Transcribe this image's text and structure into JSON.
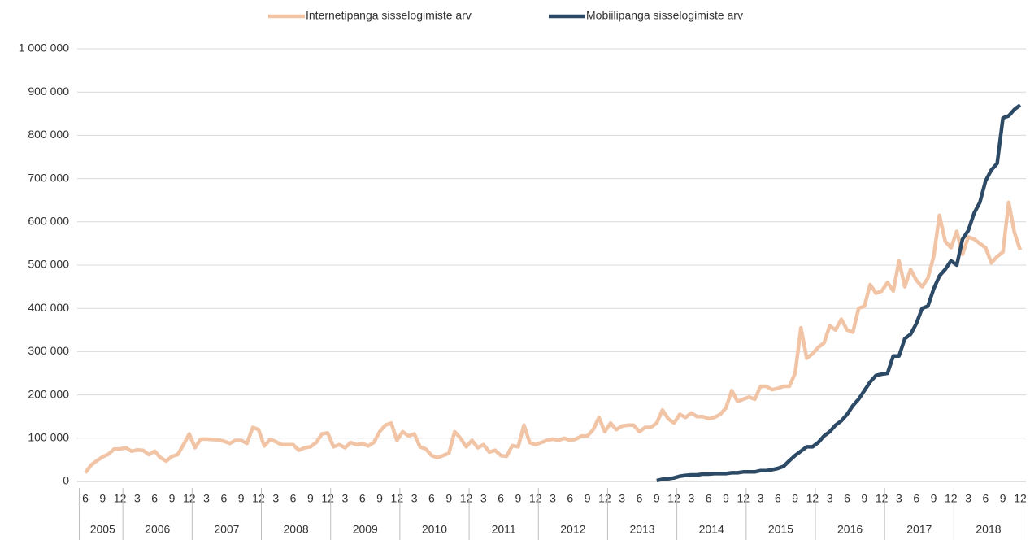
{
  "chart_data": {
    "type": "line",
    "categories": [
      "6",
      null,
      null,
      "9",
      null,
      null,
      "12",
      null,
      null,
      "3",
      null,
      null,
      "6",
      null,
      null,
      "9",
      null,
      null,
      "12",
      null,
      null,
      "3",
      null,
      null,
      "6",
      null,
      null,
      "9",
      null,
      null,
      "12",
      null,
      null,
      "3",
      null,
      null,
      "6",
      null,
      null,
      "9",
      null,
      null,
      "12",
      null,
      null,
      "3",
      null,
      null,
      "6",
      null,
      null,
      "9",
      null,
      null,
      "12",
      null,
      null,
      "3",
      null,
      null,
      "6",
      null,
      null,
      "9",
      null,
      null,
      "12",
      null,
      null,
      "3",
      null,
      null,
      "6",
      null,
      null,
      "9",
      null,
      null,
      "12",
      null,
      null,
      "3",
      null,
      null,
      "6",
      null,
      null,
      "9",
      null,
      null,
      "12",
      null,
      null,
      "3",
      null,
      null,
      "6",
      null,
      null,
      "9",
      null,
      null,
      "12",
      null,
      null,
      "3",
      null,
      null,
      "6",
      null,
      null,
      "9",
      null,
      null,
      "12",
      null,
      null,
      "3",
      null,
      null,
      "6",
      null,
      null,
      "9",
      null,
      null,
      "12",
      null,
      null,
      "3",
      null,
      null,
      "6",
      null,
      null,
      "9",
      null,
      null,
      "12",
      null,
      null,
      "3",
      null,
      null,
      "6",
      null,
      null,
      "9",
      null,
      null,
      "12",
      null,
      null,
      "3",
      null,
      null,
      "6",
      null,
      null,
      "9",
      null,
      null,
      "12"
    ],
    "x_groups": [
      {
        "label": "2005",
        "size": 7
      },
      {
        "label": "2006",
        "size": 12
      },
      {
        "label": "2007",
        "size": 12
      },
      {
        "label": "2008",
        "size": 12
      },
      {
        "label": "2009",
        "size": 12
      },
      {
        "label": "2010",
        "size": 12
      },
      {
        "label": "2011",
        "size": 12
      },
      {
        "label": "2012",
        "size": 12
      },
      {
        "label": "2013",
        "size": 12
      },
      {
        "label": "2014",
        "size": 12
      },
      {
        "label": "2015",
        "size": 12
      },
      {
        "label": "2016",
        "size": 12
      },
      {
        "label": "2017",
        "size": 12
      },
      {
        "label": "2018",
        "size": 12
      }
    ],
    "series": [
      {
        "name": "Internetipanga sisselogimiste arv",
        "color": "#f2c4a6",
        "values": [
          20000,
          38000,
          48000,
          57000,
          63000,
          75000,
          75000,
          78000,
          70000,
          73000,
          72000,
          62000,
          70000,
          55000,
          47000,
          58000,
          62000,
          85000,
          110000,
          78000,
          98000,
          98000,
          97000,
          96000,
          93000,
          88000,
          95000,
          95000,
          88000,
          125000,
          120000,
          82000,
          97000,
          92000,
          85000,
          85000,
          85000,
          72000,
          78000,
          80000,
          90000,
          110000,
          112000,
          80000,
          85000,
          78000,
          90000,
          85000,
          88000,
          82000,
          90000,
          115000,
          130000,
          135000,
          95000,
          115000,
          105000,
          110000,
          80000,
          75000,
          60000,
          55000,
          60000,
          65000,
          115000,
          100000,
          80000,
          95000,
          78000,
          85000,
          68000,
          72000,
          60000,
          58000,
          83000,
          80000,
          130000,
          90000,
          85000,
          90000,
          95000,
          98000,
          95000,
          100000,
          95000,
          98000,
          105000,
          105000,
          120000,
          148000,
          115000,
          135000,
          120000,
          128000,
          130000,
          130000,
          115000,
          125000,
          125000,
          135000,
          165000,
          145000,
          135000,
          155000,
          148000,
          158000,
          150000,
          150000,
          145000,
          148000,
          155000,
          170000,
          210000,
          185000,
          190000,
          195000,
          190000,
          220000,
          220000,
          212000,
          215000,
          220000,
          220000,
          250000,
          355000,
          285000,
          295000,
          310000,
          320000,
          360000,
          350000,
          375000,
          350000,
          345000,
          400000,
          405000,
          455000,
          435000,
          440000,
          460000,
          440000,
          510000,
          450000,
          490000,
          465000,
          450000,
          470000,
          520000,
          615000,
          555000,
          540000,
          578000,
          525000,
          565000,
          560000,
          550000,
          540000,
          505000,
          520000,
          530000,
          645000,
          575000,
          535000
        ]
      },
      {
        "name": "Mobiilipanga sisselogimiste arv",
        "color": "#2c4a66",
        "values": [
          null,
          null,
          null,
          null,
          null,
          null,
          null,
          null,
          null,
          null,
          null,
          null,
          null,
          null,
          null,
          null,
          null,
          null,
          null,
          null,
          null,
          null,
          null,
          null,
          null,
          null,
          null,
          null,
          null,
          null,
          null,
          null,
          null,
          null,
          null,
          null,
          null,
          null,
          null,
          null,
          null,
          null,
          null,
          null,
          null,
          null,
          null,
          null,
          null,
          null,
          null,
          null,
          null,
          null,
          null,
          null,
          null,
          null,
          null,
          null,
          null,
          null,
          null,
          null,
          null,
          null,
          null,
          null,
          null,
          null,
          null,
          null,
          null,
          null,
          null,
          null,
          null,
          null,
          null,
          null,
          null,
          null,
          null,
          null,
          null,
          null,
          null,
          null,
          null,
          null,
          null,
          null,
          null,
          null,
          null,
          null,
          null,
          null,
          null,
          2000,
          5000,
          6000,
          8000,
          12000,
          14000,
          15000,
          15000,
          17000,
          17000,
          18000,
          18000,
          18000,
          20000,
          20000,
          22000,
          22000,
          22000,
          25000,
          25000,
          27000,
          30000,
          35000,
          48000,
          60000,
          70000,
          80000,
          80000,
          90000,
          105000,
          115000,
          130000,
          140000,
          155000,
          175000,
          190000,
          210000,
          230000,
          245000,
          248000,
          250000,
          290000,
          290000,
          330000,
          340000,
          365000,
          400000,
          405000,
          445000,
          475000,
          490000,
          510000,
          500000,
          560000,
          580000,
          620000,
          645000,
          695000,
          720000,
          735000,
          840000,
          845000,
          860000,
          870000
        ]
      }
    ],
    "ylim": [
      0,
      1000000
    ],
    "yticks": [
      0,
      {
        "value": 100000,
        "label": "100 000"
      },
      {
        "value": 200000,
        "label": "200 000"
      },
      {
        "value": 300000,
        "label": "300 000"
      },
      {
        "value": 400000,
        "label": "400 000"
      },
      {
        "value": 500000,
        "label": "500 000"
      },
      {
        "value": 600000,
        "label": "600 000"
      },
      {
        "value": 700000,
        "label": "700 000"
      },
      {
        "value": 800000,
        "label": "800 000"
      },
      {
        "value": 900000,
        "label": "900 000"
      },
      {
        "value": 1000000,
        "label": "1 000 000"
      }
    ],
    "grid": true,
    "legend": "top"
  }
}
